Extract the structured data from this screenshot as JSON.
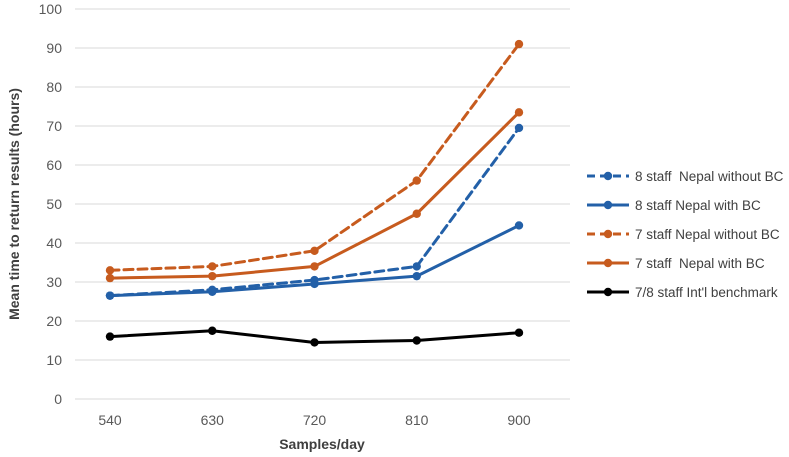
{
  "chart_data": {
    "type": "line",
    "x": [
      540,
      630,
      720,
      810,
      900
    ],
    "xlabel": "Samples/day",
    "ylabel": "Mean time to return results (hours)",
    "ylim": [
      0,
      100
    ],
    "ytick_step": 10,
    "grid": "horizontal",
    "legend_position": "right",
    "series": [
      {
        "name": "8 staff  Nepal without BC",
        "color": "#2360a8",
        "style": "dashed",
        "values": [
          26.5,
          28,
          30.5,
          34,
          69.5
        ]
      },
      {
        "name": "8 staff Nepal with BC",
        "color": "#2360a8",
        "style": "solid",
        "values": [
          26.5,
          27.5,
          29.5,
          31.5,
          44.5
        ]
      },
      {
        "name": "7 staff Nepal without BC",
        "color": "#c75b1e",
        "style": "dashed",
        "values": [
          33,
          34,
          38,
          56,
          91
        ]
      },
      {
        "name": "7 staff  Nepal with BC",
        "color": "#c75b1e",
        "style": "solid",
        "values": [
          31,
          31.5,
          34,
          47.5,
          73.5
        ]
      },
      {
        "name": "7/8 staff Int'l benchmark",
        "color": "#000000",
        "style": "solid",
        "values": [
          16,
          17.5,
          14.5,
          15,
          17
        ]
      }
    ],
    "colors": {
      "gridline": "#d9d9d9",
      "tick_label": "#595959",
      "axis_title": "#3f3f3f",
      "legend_text": "#404040",
      "background": "#ffffff"
    }
  }
}
